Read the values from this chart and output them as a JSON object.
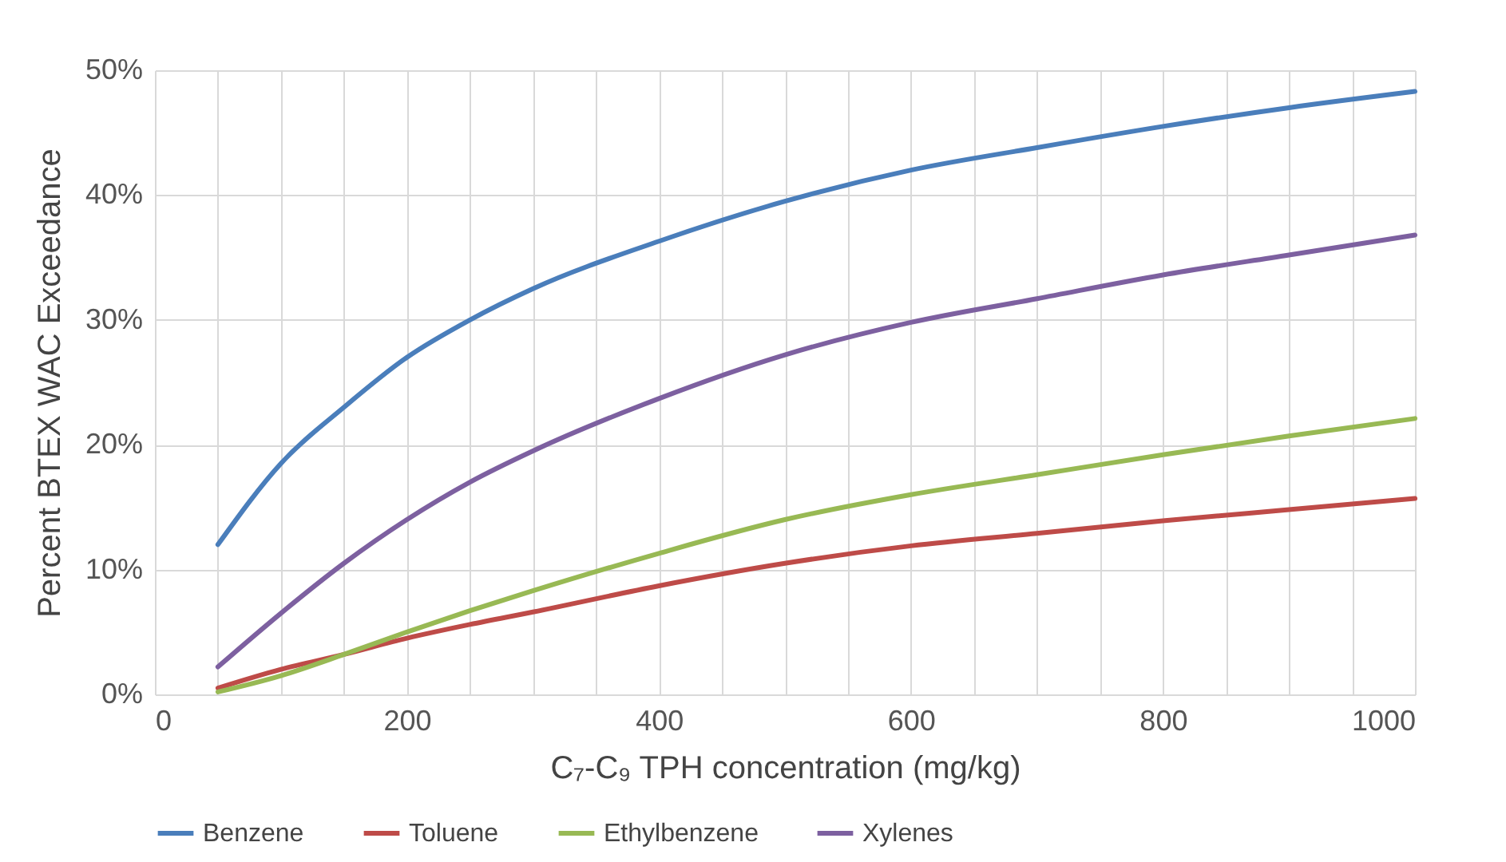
{
  "chart_data": {
    "type": "line",
    "xlabel": "C₇-C₉ TPH concentration (mg/kg)",
    "ylabel": "Percent BTEX WAC Exceedance",
    "x": [
      50,
      100,
      150,
      200,
      250,
      300,
      400,
      500,
      600,
      700,
      800,
      900,
      1000
    ],
    "series": [
      {
        "name": "Benzene",
        "color": "#4a7ebb",
        "values": [
          12,
          18.5,
          23,
          27,
          30,
          32.5,
          36.3,
          39.5,
          42,
          43.8,
          45.5,
          47,
          48.3
        ]
      },
      {
        "name": "Toluene",
        "color": "#be4b48",
        "values": [
          0.5,
          2,
          3.2,
          4.5,
          5.6,
          6.6,
          8.7,
          10.5,
          11.9,
          12.9,
          13.9,
          14.8,
          15.7
        ]
      },
      {
        "name": "Ethylbenzene",
        "color": "#98b954",
        "values": [
          0.2,
          1.5,
          3.2,
          5,
          6.7,
          8.3,
          11.3,
          14,
          16,
          17.6,
          19.2,
          20.7,
          22.1
        ]
      },
      {
        "name": "Xylenes",
        "color": "#7d60a0",
        "values": [
          2.2,
          6.5,
          10.5,
          14,
          17,
          19.5,
          23.7,
          27.2,
          29.8,
          31.7,
          33.6,
          35.2,
          36.8
        ]
      }
    ],
    "xlim": [
      0,
      1000
    ],
    "xticks": [
      0,
      {
        "value": 50,
        "label": null
      },
      {
        "value": 100,
        "label": null
      },
      {
        "value": 150,
        "label": null
      },
      200,
      {
        "value": 250,
        "label": null
      },
      {
        "value": 300,
        "label": null
      },
      {
        "value": 350,
        "label": null
      },
      400,
      {
        "value": 450,
        "label": null
      },
      {
        "value": 500,
        "label": null
      },
      {
        "value": 550,
        "label": null
      },
      600,
      {
        "value": 650,
        "label": null
      },
      {
        "value": 700,
        "label": null
      },
      {
        "value": 750,
        "label": null
      },
      800,
      {
        "value": 850,
        "label": null
      },
      {
        "value": 900,
        "label": null
      },
      {
        "value": 950,
        "label": null
      },
      1000
    ],
    "ylim": [
      0,
      50
    ],
    "yticks": [
      {
        "value": 0,
        "label": "0%"
      },
      {
        "value": 10,
        "label": "10%"
      },
      {
        "value": 20,
        "label": "20%"
      },
      {
        "value": 30,
        "label": "30%"
      },
      {
        "value": 40,
        "label": "40%"
      },
      {
        "value": 50,
        "label": "50%"
      }
    ],
    "grid": true,
    "legend": "bottom",
    "marker": "none",
    "line_style": "solid"
  }
}
